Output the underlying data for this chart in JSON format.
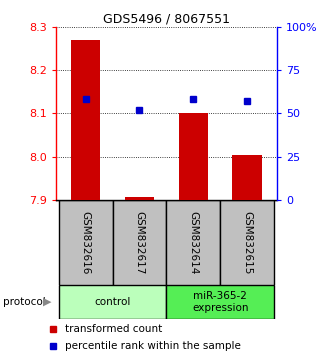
{
  "title": "GDS5496 / 8067551",
  "samples": [
    "GSM832616",
    "GSM832617",
    "GSM832614",
    "GSM832615"
  ],
  "red_values": [
    8.27,
    7.908,
    8.1,
    8.003
  ],
  "blue_percentiles": [
    58,
    52,
    58,
    57
  ],
  "y_min": 7.9,
  "y_max": 8.3,
  "y_ticks": [
    7.9,
    8.0,
    8.1,
    8.2,
    8.3
  ],
  "right_y_ticks": [
    0,
    25,
    50,
    75,
    100
  ],
  "groups": [
    {
      "label": "control",
      "indices": [
        0,
        1
      ],
      "color": "#bbffbb"
    },
    {
      "label": "miR-365-2\nexpression",
      "indices": [
        2,
        3
      ],
      "color": "#55ee55"
    }
  ],
  "bar_color": "#cc0000",
  "dot_color": "#0000cc",
  "bar_width": 0.55,
  "x_positions": [
    0,
    1,
    2,
    3
  ],
  "background_color": "#ffffff",
  "sample_box_color": "#c0c0c0",
  "legend_red_label": "transformed count",
  "legend_blue_label": "percentile rank within the sample"
}
